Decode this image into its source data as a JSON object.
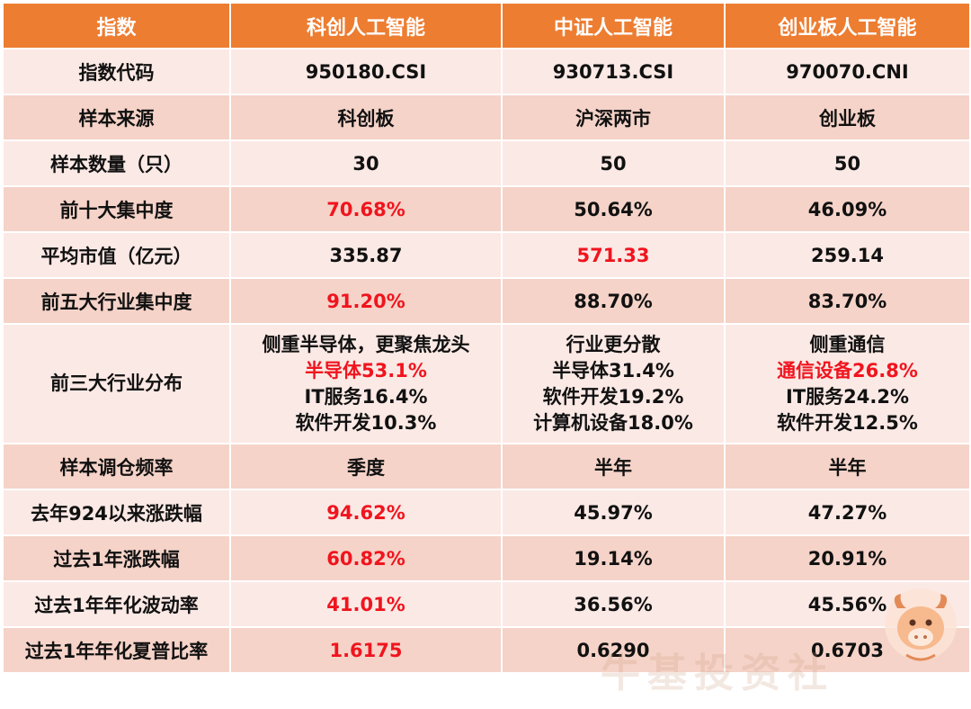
{
  "header": [
    "指数",
    "科创人工智能",
    "中证人工智能",
    "创业板人工智能"
  ],
  "rows": [
    {
      "label": "指数代码",
      "cells": [
        {
          "lines": [
            {
              "text": "950180.CSI"
            }
          ]
        },
        {
          "lines": [
            {
              "text": "930713.CSI"
            }
          ]
        },
        {
          "lines": [
            {
              "text": "970070.CNI"
            }
          ]
        }
      ]
    },
    {
      "label": "样本来源",
      "cells": [
        {
          "lines": [
            {
              "text": "科创板"
            }
          ]
        },
        {
          "lines": [
            {
              "text": "沪深两市"
            }
          ]
        },
        {
          "lines": [
            {
              "text": "创业板"
            }
          ]
        }
      ]
    },
    {
      "label": "样本数量（只）",
      "cells": [
        {
          "lines": [
            {
              "text": "30"
            }
          ]
        },
        {
          "lines": [
            {
              "text": "50"
            }
          ]
        },
        {
          "lines": [
            {
              "text": "50"
            }
          ]
        }
      ]
    },
    {
      "label": "前十大集中度",
      "cells": [
        {
          "lines": [
            {
              "text": "70.68%",
              "highlight": true
            }
          ]
        },
        {
          "lines": [
            {
              "text": "50.64%"
            }
          ]
        },
        {
          "lines": [
            {
              "text": "46.09%"
            }
          ]
        }
      ]
    },
    {
      "label": "平均市值（亿元）",
      "cells": [
        {
          "lines": [
            {
              "text": "335.87"
            }
          ]
        },
        {
          "lines": [
            {
              "text": "571.33",
              "highlight": true
            }
          ]
        },
        {
          "lines": [
            {
              "text": "259.14"
            }
          ]
        }
      ]
    },
    {
      "label": "前五大行业集中度",
      "cells": [
        {
          "lines": [
            {
              "text": "91.20%",
              "highlight": true
            }
          ]
        },
        {
          "lines": [
            {
              "text": "88.70%"
            }
          ]
        },
        {
          "lines": [
            {
              "text": "83.70%"
            }
          ]
        }
      ]
    },
    {
      "label": "前三大行业分布",
      "tall": true,
      "cells": [
        {
          "lines": [
            {
              "text": "侧重半导体，更聚焦龙头"
            },
            {
              "text": "半导体53.1%",
              "highlight": true
            },
            {
              "text": "IT服务16.4%"
            },
            {
              "text": "软件开发10.3%"
            }
          ]
        },
        {
          "lines": [
            {
              "text": "行业更分散"
            },
            {
              "text": "半导体31.4%"
            },
            {
              "text": "软件开发19.2%"
            },
            {
              "text": "计算机设备18.0%"
            }
          ]
        },
        {
          "lines": [
            {
              "text": "侧重通信"
            },
            {
              "text": "通信设备26.8%",
              "highlight": true
            },
            {
              "text": "IT服务24.2%"
            },
            {
              "text": "软件开发12.5%"
            }
          ]
        }
      ]
    },
    {
      "label": "样本调仓频率",
      "cells": [
        {
          "lines": [
            {
              "text": "季度"
            }
          ]
        },
        {
          "lines": [
            {
              "text": "半年"
            }
          ]
        },
        {
          "lines": [
            {
              "text": "半年"
            }
          ]
        }
      ]
    },
    {
      "label": "去年924以来涨跌幅",
      "cells": [
        {
          "lines": [
            {
              "text": "94.62%",
              "highlight": true
            }
          ]
        },
        {
          "lines": [
            {
              "text": "45.97%"
            }
          ]
        },
        {
          "lines": [
            {
              "text": "47.27%"
            }
          ]
        }
      ]
    },
    {
      "label": "过去1年涨跌幅",
      "cells": [
        {
          "lines": [
            {
              "text": "60.82%",
              "highlight": true
            }
          ]
        },
        {
          "lines": [
            {
              "text": "19.14%"
            }
          ]
        },
        {
          "lines": [
            {
              "text": "20.91%"
            }
          ]
        }
      ]
    },
    {
      "label": "过去1年年化波动率",
      "cells": [
        {
          "lines": [
            {
              "text": "41.01%",
              "highlight": true
            }
          ]
        },
        {
          "lines": [
            {
              "text": "36.56%"
            }
          ]
        },
        {
          "lines": [
            {
              "text": "45.56%"
            }
          ]
        }
      ]
    },
    {
      "label": "过去1年年化夏普比率",
      "cells": [
        {
          "lines": [
            {
              "text": "1.6175",
              "highlight": true
            }
          ]
        },
        {
          "lines": [
            {
              "text": "0.6290"
            }
          ]
        },
        {
          "lines": [
            {
              "text": "0.6703"
            }
          ]
        }
      ]
    }
  ],
  "watermark": {
    "text": "牛基投资社"
  },
  "colors": {
    "header_bg": "#ed7d31",
    "row_light": "#fbe9e5",
    "row_dark": "#f5d3c8",
    "highlight_text": "#f0141e"
  },
  "mascot_icon": "bull-mascot-icon"
}
